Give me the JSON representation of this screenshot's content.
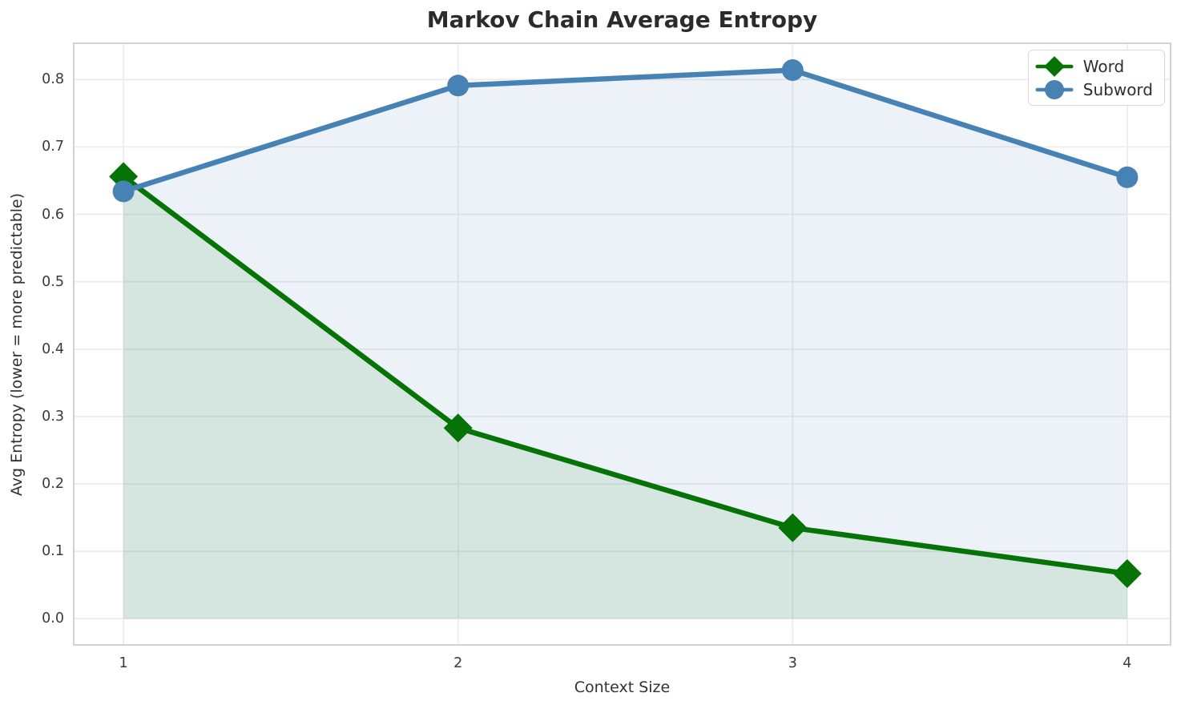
{
  "title": "Markov Chain Average Entropy",
  "chart_data": {
    "type": "line",
    "x": [
      1,
      2,
      3,
      4
    ],
    "x_tick_labels": [
      "1",
      "2",
      "3",
      "4"
    ],
    "y_tick_labels": [
      "0.0",
      "0.1",
      "0.2",
      "0.3",
      "0.4",
      "0.5",
      "0.6",
      "0.7",
      "0.8"
    ],
    "series": [
      {
        "name": "Word",
        "marker": "diamond",
        "color": "#067306",
        "values": [
          0.656,
          0.283,
          0.135,
          0.067
        ]
      },
      {
        "name": "Subword",
        "marker": "circle",
        "color": "#4682b4",
        "values": [
          0.634,
          0.791,
          0.814,
          0.655
        ]
      }
    ],
    "xlabel": "Context Size",
    "ylabel": "Avg Entropy (lower = more predictable)",
    "xlim": [
      0.849,
      4.132
    ],
    "ylim": [
      -0.04,
      0.855
    ],
    "grid": true,
    "area_fill": true,
    "fill_alpha": 0.1,
    "legend_position": "upper right",
    "grid_color": "#ececec",
    "spine_color": "#d2d2d2"
  }
}
